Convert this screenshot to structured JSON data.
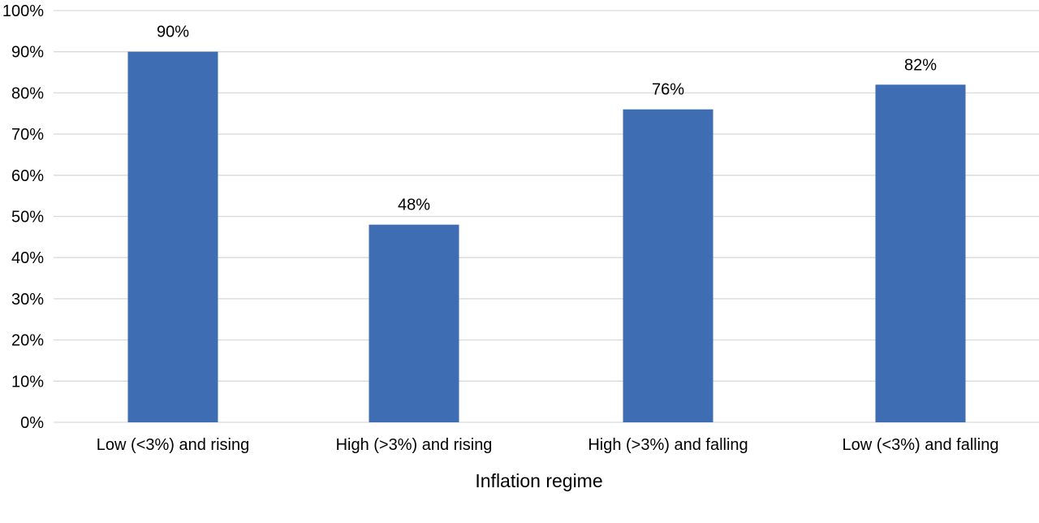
{
  "chart_data": {
    "type": "bar",
    "categories": [
      "Low (<3%) and rising",
      "High (>3%) and rising",
      "High (>3%) and falling",
      "Low (<3%) and falling"
    ],
    "values": [
      90,
      48,
      76,
      82
    ],
    "data_labels": [
      "90%",
      "48%",
      "76%",
      "82%"
    ],
    "title": "",
    "xlabel": "Inflation regime",
    "ylabel": "",
    "ylim": [
      0,
      100
    ],
    "yticks": [
      0,
      10,
      20,
      30,
      40,
      50,
      60,
      70,
      80,
      90,
      100
    ],
    "ytick_labels": [
      "0%",
      "10%",
      "20%",
      "30%",
      "40%",
      "50%",
      "60%",
      "70%",
      "80%",
      "90%",
      "100%"
    ],
    "grid": true,
    "legend": "none",
    "bar_color": "#3f6db4"
  }
}
